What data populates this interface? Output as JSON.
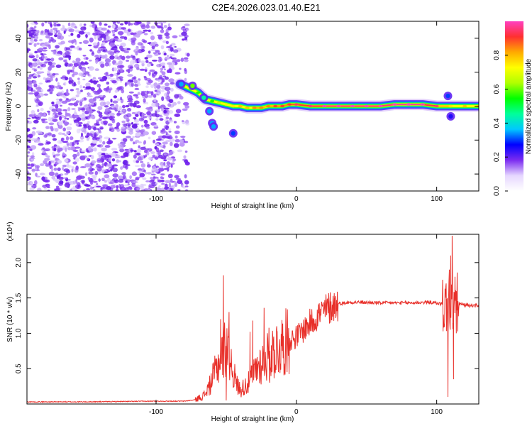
{
  "title": "C2E4.2026.023.01.40.E21",
  "colors": {
    "snr_line": "#e8302a",
    "frame": "#000000",
    "scatter": "#7b2cf0",
    "scatter_light": "#cdb6f7"
  },
  "chart_data": [
    {
      "type": "heatmap",
      "name": "spectrogram",
      "xlabel": "Height of straight line (km)",
      "ylabel": "Frequency (Hz)",
      "xlim": [
        -192,
        130
      ],
      "ylim": [
        -50,
        50
      ],
      "x_ticks": [
        -100,
        0,
        100
      ],
      "y_ticks": [
        -40,
        -20,
        0,
        20,
        40
      ],
      "colorbar": {
        "label": "Normalized spectral amplitude",
        "range": [
          0,
          1
        ],
        "ticks": [
          "0.0",
          "0.2",
          "0.4",
          "0.6",
          "0.8"
        ],
        "colormap": [
          "#ffffff",
          "#e6d7ff",
          "#7b2cf0",
          "#0000ff",
          "#00c8ff",
          "#00ff9a",
          "#00ff00",
          "#b0ff00",
          "#ffff00",
          "#ffaa00",
          "#ff3030",
          "#ff40c0"
        ]
      },
      "noise_region_x": [
        -192,
        -77
      ],
      "signal_band": [
        {
          "x": -83,
          "y": 13,
          "w": 5,
          "a": 0.45
        },
        {
          "x": -75,
          "y": 10,
          "w": 5,
          "a": 0.55
        },
        {
          "x": -70,
          "y": 8,
          "w": 5,
          "a": 0.5
        },
        {
          "x": -65,
          "y": 4,
          "w": 6,
          "a": 0.55
        },
        {
          "x": -60,
          "y": 3,
          "w": 5,
          "a": 0.5
        },
        {
          "x": -55,
          "y": 2,
          "w": 5,
          "a": 0.6
        },
        {
          "x": -50,
          "y": 1,
          "w": 5,
          "a": 0.65
        },
        {
          "x": -45,
          "y": 0,
          "w": 5,
          "a": 0.7
        },
        {
          "x": -40,
          "y": 0,
          "w": 5,
          "a": 0.75
        },
        {
          "x": -35,
          "y": -1,
          "w": 5,
          "a": 0.75
        },
        {
          "x": -30,
          "y": -1,
          "w": 5,
          "a": 0.8
        },
        {
          "x": -25,
          "y": -1,
          "w": 5,
          "a": 0.8
        },
        {
          "x": -20,
          "y": 0,
          "w": 5,
          "a": 0.8
        },
        {
          "x": -15,
          "y": 0,
          "w": 5,
          "a": 0.85
        },
        {
          "x": -10,
          "y": 0,
          "w": 5,
          "a": 0.85
        },
        {
          "x": -5,
          "y": 1,
          "w": 5,
          "a": 0.85
        },
        {
          "x": 0,
          "y": 1,
          "w": 5,
          "a": 0.9
        },
        {
          "x": 10,
          "y": 0,
          "w": 5,
          "a": 0.9
        },
        {
          "x": 20,
          "y": 0,
          "w": 5,
          "a": 0.95
        },
        {
          "x": 30,
          "y": 0,
          "w": 5,
          "a": 0.95
        },
        {
          "x": 40,
          "y": 0,
          "w": 5,
          "a": 0.95
        },
        {
          "x": 50,
          "y": 0,
          "w": 5,
          "a": 0.95
        },
        {
          "x": 60,
          "y": 0,
          "w": 5,
          "a": 0.95
        },
        {
          "x": 70,
          "y": 1,
          "w": 5,
          "a": 0.95
        },
        {
          "x": 80,
          "y": 1,
          "w": 5,
          "a": 1.0
        },
        {
          "x": 90,
          "y": 1,
          "w": 5,
          "a": 0.95
        },
        {
          "x": 100,
          "y": 0,
          "w": 5,
          "a": 0.9
        },
        {
          "x": 110,
          "y": 0,
          "w": 5,
          "a": 0.7
        },
        {
          "x": 120,
          "y": 0,
          "w": 5,
          "a": 0.75
        },
        {
          "x": 130,
          "y": 0,
          "w": 5,
          "a": 0.75
        }
      ],
      "blobs": [
        {
          "x": -82,
          "y": 13,
          "a": 0.35
        },
        {
          "x": -74,
          "y": 12,
          "a": 0.6
        },
        {
          "x": -66,
          "y": 5,
          "a": 0.45
        },
        {
          "x": -62,
          "y": -3,
          "a": 0.35
        },
        {
          "x": -60,
          "y": -10,
          "a": 0.35
        },
        {
          "x": -59,
          "y": -12,
          "a": 0.35
        },
        {
          "x": -45,
          "y": -16,
          "a": 0.3
        },
        {
          "x": 108,
          "y": 6,
          "a": 0.3
        },
        {
          "x": 110,
          "y": -6,
          "a": 0.25
        }
      ]
    },
    {
      "type": "line",
      "name": "snr",
      "xlabel": "Height of straight line (km)",
      "ylabel": "SNR (10 * v/v)",
      "y_multiplier": "(x10⁴)",
      "xlim": [
        -192,
        130
      ],
      "ylim": [
        0,
        2.4
      ],
      "x_ticks": [
        -100,
        0,
        100
      ],
      "y_ticks": [
        "0.5",
        "1.0",
        "1.5",
        "2.0"
      ],
      "y_tick_values": [
        0.5,
        1.0,
        1.5,
        2.0
      ],
      "envelope": [
        [
          -192,
          0.03
        ],
        [
          -150,
          0.03
        ],
        [
          -100,
          0.04
        ],
        [
          -80,
          0.04
        ],
        [
          -72,
          0.06
        ],
        [
          -66,
          0.12
        ],
        [
          -62,
          0.25
        ],
        [
          -58,
          0.45
        ],
        [
          -55,
          0.6
        ],
        [
          -52,
          0.75
        ],
        [
          -49,
          0.85
        ],
        [
          -46,
          0.55
        ],
        [
          -43,
          0.3
        ],
        [
          -40,
          0.2
        ],
        [
          -37,
          0.25
        ],
        [
          -34,
          0.3
        ],
        [
          -30,
          0.45
        ],
        [
          -27,
          0.55
        ],
        [
          -24,
          0.6
        ],
        [
          -20,
          0.7
        ],
        [
          -15,
          0.75
        ],
        [
          -10,
          0.85
        ],
        [
          -5,
          0.9
        ],
        [
          0,
          0.95
        ],
        [
          5,
          1.05
        ],
        [
          10,
          1.15
        ],
        [
          15,
          1.25
        ],
        [
          20,
          1.32
        ],
        [
          25,
          1.38
        ],
        [
          30,
          1.42
        ],
        [
          40,
          1.44
        ],
        [
          60,
          1.43
        ],
        [
          80,
          1.43
        ],
        [
          95,
          1.44
        ],
        [
          102,
          1.42
        ],
        [
          106,
          1.4
        ],
        [
          108,
          1.35
        ],
        [
          111,
          1.4
        ],
        [
          115,
          1.42
        ],
        [
          120,
          1.4
        ],
        [
          130,
          1.39
        ]
      ],
      "spikes": [
        [
          -52,
          1.82
        ],
        [
          -54,
          1.2
        ],
        [
          -50,
          0.05
        ],
        [
          -48,
          1.3
        ],
        [
          -33,
          1.02
        ],
        [
          -31,
          1.18
        ],
        [
          -23,
          1.36
        ],
        [
          -19,
          0.3
        ],
        [
          -14,
          1.1
        ],
        [
          -10,
          0.75
        ],
        [
          108,
          0.1
        ],
        [
          109,
          1.9
        ],
        [
          110,
          2.1
        ],
        [
          111,
          2.38
        ],
        [
          112,
          0.35
        ],
        [
          113,
          1.8
        ],
        [
          114,
          1.0
        ]
      ]
    }
  ]
}
